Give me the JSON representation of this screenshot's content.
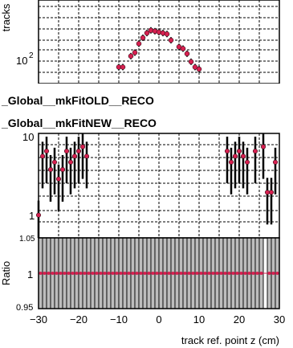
{
  "chart_data": [
    {
      "type": "scatter",
      "ylabel": "tracks",
      "yscale": "log",
      "ytick_labels": [
        "10",
        "2"
      ],
      "grid": true,
      "legend_placement": "bottom",
      "legend": [
        {
          "label": "_Global__mkFitOLD__RECO",
          "marker": "open-circle"
        },
        {
          "label": "_Global__mkFitNEW__RECO",
          "marker": "filled-circle",
          "color": "#d62050"
        }
      ],
      "series": [
        {
          "x": [
            -10,
            -9,
            -7,
            -6,
            -5,
            -4,
            -3,
            -2,
            -1,
            0,
            1,
            2,
            3,
            5,
            6,
            7,
            8,
            9,
            10
          ],
          "values": [
            60,
            60,
            95,
            110,
            160,
            205,
            250,
            280,
            270,
            260,
            250,
            240,
            185,
            140,
            130,
            105,
            75,
            60,
            55
          ]
        }
      ]
    },
    {
      "type": "scatter",
      "yscale": "log",
      "ytick_labels": [
        "10",
        "1"
      ],
      "grid": true,
      "series": [
        {
          "x": [
            -30,
            -29,
            -28,
            -27,
            -26,
            -25,
            -24,
            -23,
            -22,
            -21,
            -20,
            -19,
            -18,
            17,
            18,
            19,
            20,
            21,
            22,
            24,
            26,
            27,
            28,
            29
          ],
          "values": [
            1,
            6,
            7,
            4,
            5,
            3,
            4,
            7,
            5,
            6,
            7,
            8,
            6,
            7,
            5,
            6,
            7,
            6,
            5,
            7,
            8,
            2,
            2,
            5
          ]
        }
      ]
    },
    {
      "type": "scatter",
      "ylabel": "Ratio",
      "xlabel": "track ref. point z (cm)",
      "ylim": [
        0.95,
        1.05
      ],
      "ytick_labels": [
        "1.05",
        "1",
        "0.95"
      ],
      "xticks": [
        -30,
        -20,
        -10,
        0,
        10,
        20,
        30
      ],
      "xtick_labels": [
        "−30",
        "−20",
        "−10",
        "0",
        "10",
        "20",
        "30"
      ],
      "series": [
        {
          "values": [
            1,
            1,
            1,
            1,
            1,
            1,
            1,
            1,
            1,
            1,
            1,
            1,
            1,
            1,
            1,
            1,
            1,
            1,
            1,
            1,
            1,
            1,
            1,
            1,
            1,
            1,
            1,
            1,
            1,
            1,
            1,
            1,
            1,
            1,
            1,
            1,
            1,
            1,
            1,
            1,
            1,
            1,
            1,
            1,
            1,
            1,
            1,
            1,
            1,
            1,
            1,
            1,
            1,
            1,
            1,
            1,
            1,
            1,
            1,
            1
          ]
        }
      ]
    }
  ]
}
